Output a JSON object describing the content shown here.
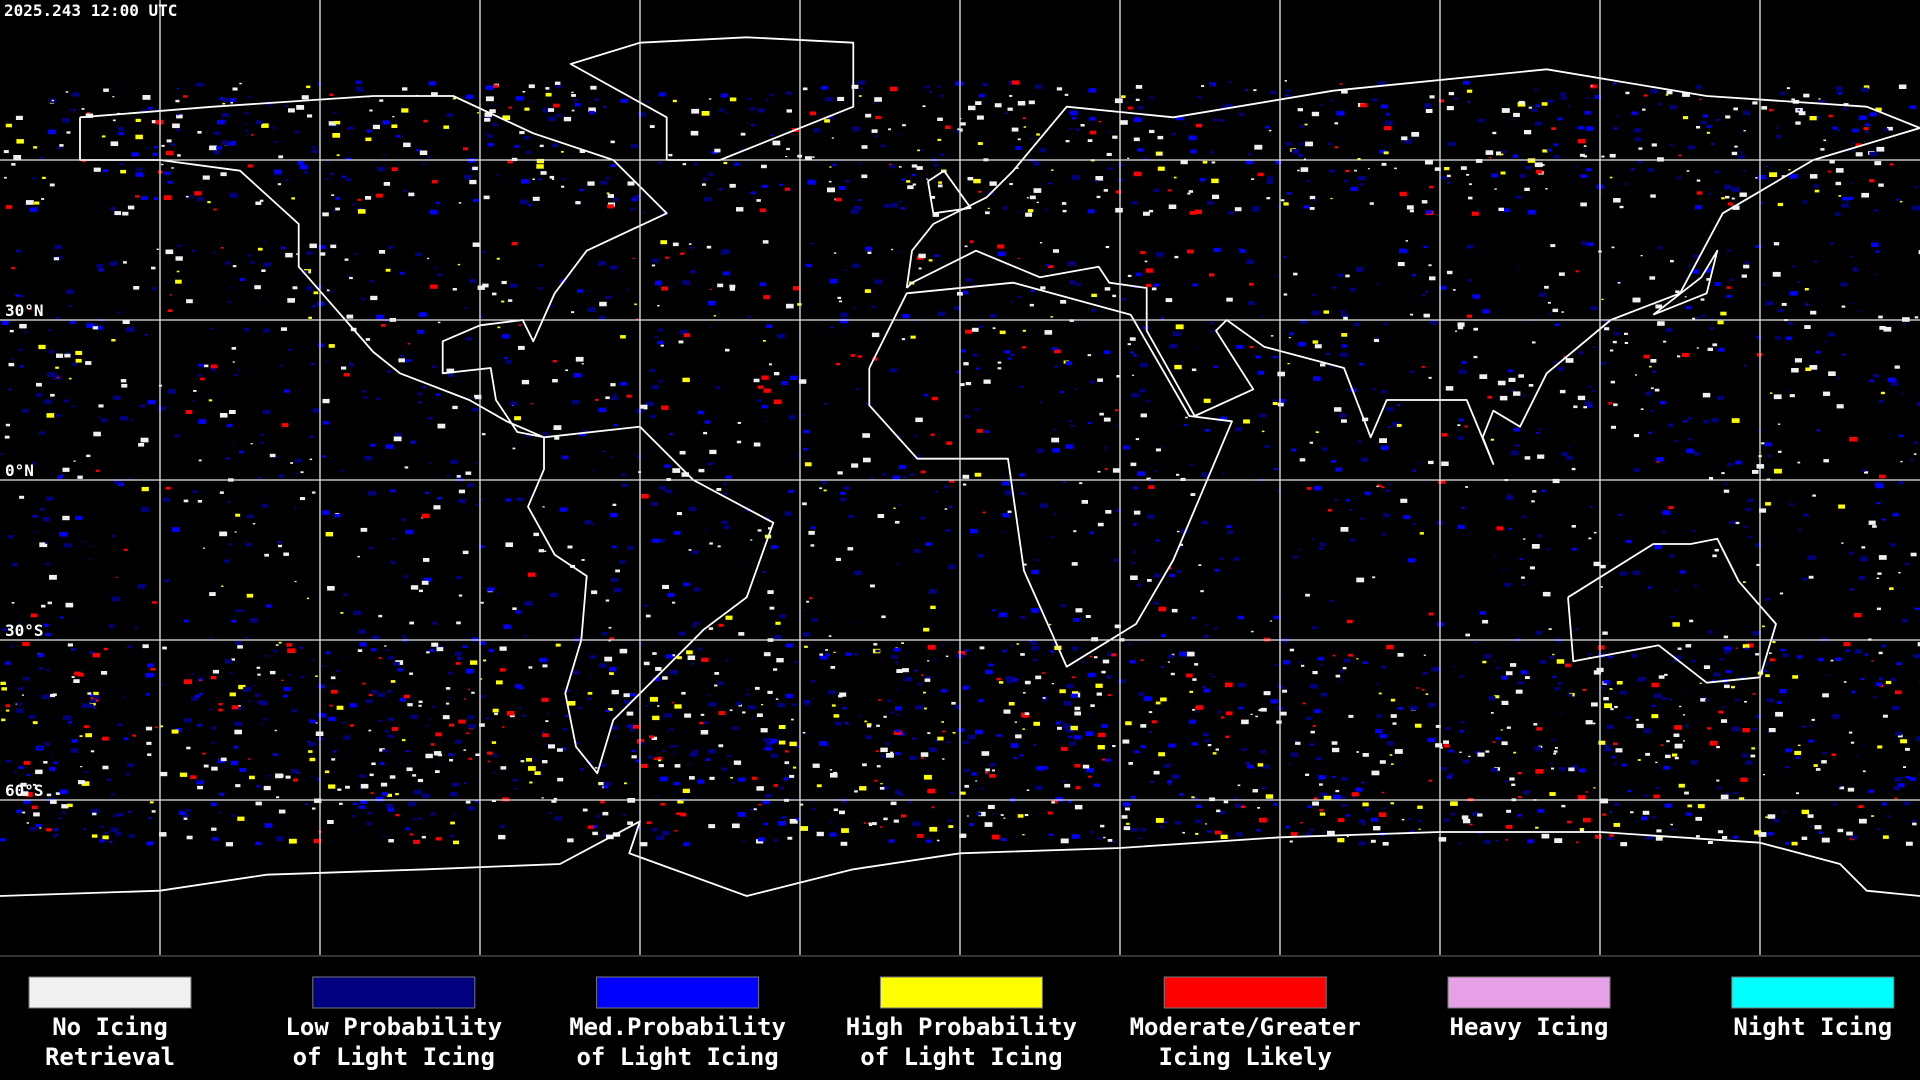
{
  "header": {
    "title": "2025.243 12:00 UTC"
  },
  "map": {
    "latitude_labels": [
      "30°N",
      "0°N",
      "30°S",
      "60°S"
    ]
  },
  "legend": {
    "items": [
      {
        "lines": [
          "No Icing",
          "Retrieval"
        ],
        "color": "#f0f0f0"
      },
      {
        "lines": [
          "Low Probability",
          "of Light Icing"
        ],
        "color": "#000080"
      },
      {
        "lines": [
          "Med.Probability",
          "of Light Icing"
        ],
        "color": "#0000ff"
      },
      {
        "lines": [
          "High Probability",
          "of Light Icing"
        ],
        "color": "#ffff00"
      },
      {
        "lines": [
          "Moderate/Greater",
          "Icing Likely"
        ],
        "color": "#ff0000"
      },
      {
        "lines": [
          "Heavy Icing"
        ],
        "color": "#e6a0e6"
      },
      {
        "lines": [
          "Night Icing"
        ],
        "color": "#00ffff"
      }
    ]
  }
}
